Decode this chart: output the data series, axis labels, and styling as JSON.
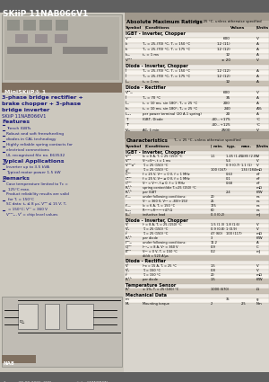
{
  "title": "SKiiP 11NAB066V1",
  "bg_color": "#d8d4cc",
  "header_bg": "#606060",
  "footer_bg": "#606060",
  "footer_text": "1          28-08-2006  SEN                    © by SEMIKRON",
  "left_bg": "#ccc8be",
  "miniskiip_bar_bg": "#807060",
  "miniskiip_label": "MiniSKiiP® 1",
  "subtitle1": "3-phase bridge rectifier +",
  "subtitle2": "brake chopper + 3-phase",
  "subtitle3": "bridge inverter",
  "subtitle4": "SKiiP 11NAB066V1",
  "features_title": "Features",
  "features": [
    "Trench IGBTs",
    "Robust and soft freewheeling",
    "diodes in CAL technology",
    "Highly reliable spring contacts for",
    "electrical connections",
    "UL recognised file no. E63532"
  ],
  "applications_title": "Typical Applications",
  "applications": [
    "Inverter up to 3.5 kVA",
    "Typical motor power 1.5 kW"
  ],
  "remarks_title": "Remarks",
  "remarks": [
    "Case temperature limited to Tᴄ =",
    "125°C max.",
    "Product reliability results are valid",
    "for Tⱼ = 150°C",
    "SC data: tₚ ≤ 8 μs; Vᴳᵉ ≤ 15 V; Tⱼ",
    "= 150°C; Vᶜᶜ = 360 V",
    "Vᶜᵉˢₐₜ, Vᶠ = chip level values"
  ],
  "na8_label": "NA8",
  "table_title_bg": "#a0988c",
  "col_header_bg": "#b8b0a4",
  "section_bg": "#c8c0b4",
  "row_bg1": "#eeeae4",
  "row_bg2": "#f8f4ee",
  "grid_color": "#b0a898"
}
